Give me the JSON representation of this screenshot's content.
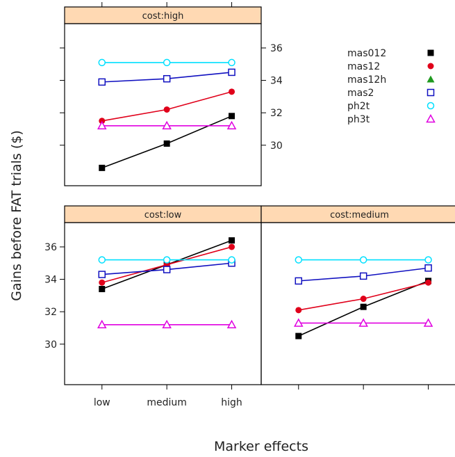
{
  "chart_data": {
    "type": "line",
    "ylabel": "Gains before FAT trials ($)",
    "xlabel": "Marker effects",
    "categories": [
      "low",
      "medium",
      "high"
    ],
    "ylim": [
      27.5,
      37.5
    ],
    "yticks": [
      30,
      32,
      34,
      36
    ],
    "colors": {
      "mas012": "#000000",
      "mas12": "#e0001a",
      "mas12h": "#1f9a1f",
      "mas2": "#1010c0",
      "ph2t": "#00e0ff",
      "ph3t": "#e000e0",
      "strip_fill": "#ffd9b3"
    },
    "legend": {
      "placement": "top-right",
      "entries": [
        {
          "name": "mas012",
          "color": "#000000",
          "marker": "filled-square"
        },
        {
          "name": "mas12",
          "color": "#e0001a",
          "marker": "filled-circle"
        },
        {
          "name": "mas12h",
          "color": "#1f9a1f",
          "marker": "filled-triangle"
        },
        {
          "name": "mas2",
          "color": "#1010c0",
          "marker": "open-square"
        },
        {
          "name": "ph2t",
          "color": "#00e0ff",
          "marker": "open-circle"
        },
        {
          "name": "ph3t",
          "color": "#e000e0",
          "marker": "open-triangle"
        }
      ]
    },
    "panels": [
      {
        "strip": "cost:high",
        "series": [
          {
            "name": "mas012",
            "values": [
              28.6,
              30.1,
              31.8
            ]
          },
          {
            "name": "mas12",
            "values": [
              31.5,
              32.2,
              33.3
            ]
          },
          {
            "name": "mas2",
            "values": [
              33.9,
              34.1,
              34.5
            ]
          },
          {
            "name": "ph2t",
            "values": [
              35.1,
              35.1,
              35.1
            ]
          },
          {
            "name": "ph3t",
            "values": [
              31.2,
              31.2,
              31.2
            ]
          }
        ]
      },
      {
        "strip": "cost:low",
        "series": [
          {
            "name": "mas012",
            "values": [
              33.4,
              34.9,
              36.4
            ]
          },
          {
            "name": "mas12",
            "values": [
              33.8,
              34.9,
              36.0
            ]
          },
          {
            "name": "mas2",
            "values": [
              34.3,
              34.6,
              35.0
            ]
          },
          {
            "name": "ph2t",
            "values": [
              35.2,
              35.2,
              35.2
            ]
          },
          {
            "name": "ph3t",
            "values": [
              31.2,
              31.2,
              31.2
            ]
          }
        ]
      },
      {
        "strip": "cost:medium",
        "series": [
          {
            "name": "mas012",
            "values": [
              30.5,
              32.3,
              33.9
            ]
          },
          {
            "name": "mas12",
            "values": [
              32.1,
              32.8,
              33.8
            ]
          },
          {
            "name": "mas2",
            "values": [
              33.9,
              34.2,
              34.7
            ]
          },
          {
            "name": "ph2t",
            "values": [
              35.2,
              35.2,
              35.2
            ]
          },
          {
            "name": "ph3t",
            "values": [
              31.3,
              31.3,
              31.3
            ]
          }
        ]
      }
    ]
  }
}
